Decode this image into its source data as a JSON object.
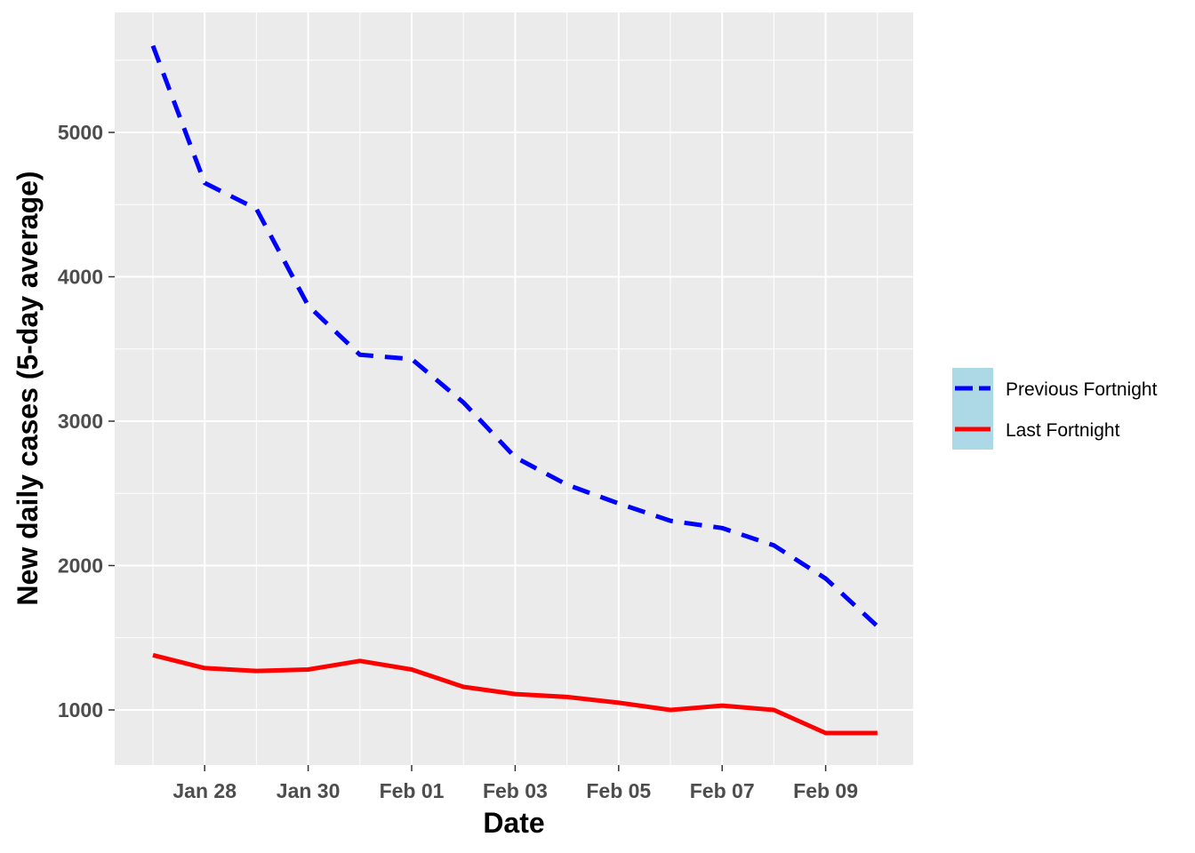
{
  "chart_data": {
    "type": "line",
    "title": "",
    "xlabel": "Date",
    "ylabel": "New daily cases (5-day average)",
    "x": [
      "Jan 27",
      "Jan 28",
      "Jan 29",
      "Jan 30",
      "Jan 31",
      "Feb 01",
      "Feb 02",
      "Feb 03",
      "Feb 04",
      "Feb 05",
      "Feb 06",
      "Feb 07",
      "Feb 08",
      "Feb 09",
      "Feb 10"
    ],
    "x_ticks": [
      "Jan 28",
      "Jan 30",
      "Feb 01",
      "Feb 03",
      "Feb 05",
      "Feb 07",
      "Feb 09"
    ],
    "y_ticks": [
      1000,
      2000,
      3000,
      4000,
      5000
    ],
    "ylim": [
      620,
      5850
    ],
    "grid": true,
    "legend_position": "right",
    "series": [
      {
        "name": "Previous Fortnight",
        "color": "#0000ff",
        "line_style": "dashed",
        "values": [
          5600,
          4650,
          4470,
          3800,
          3460,
          3430,
          3130,
          2750,
          2560,
          2430,
          2310,
          2260,
          2140,
          1910,
          1580
        ]
      },
      {
        "name": "Last Fortnight",
        "color": "#ff0000",
        "line_style": "solid",
        "values": [
          1380,
          1290,
          1270,
          1280,
          1340,
          1280,
          1160,
          1110,
          1090,
          1050,
          1000,
          1030,
          1000,
          840,
          840
        ]
      }
    ]
  }
}
